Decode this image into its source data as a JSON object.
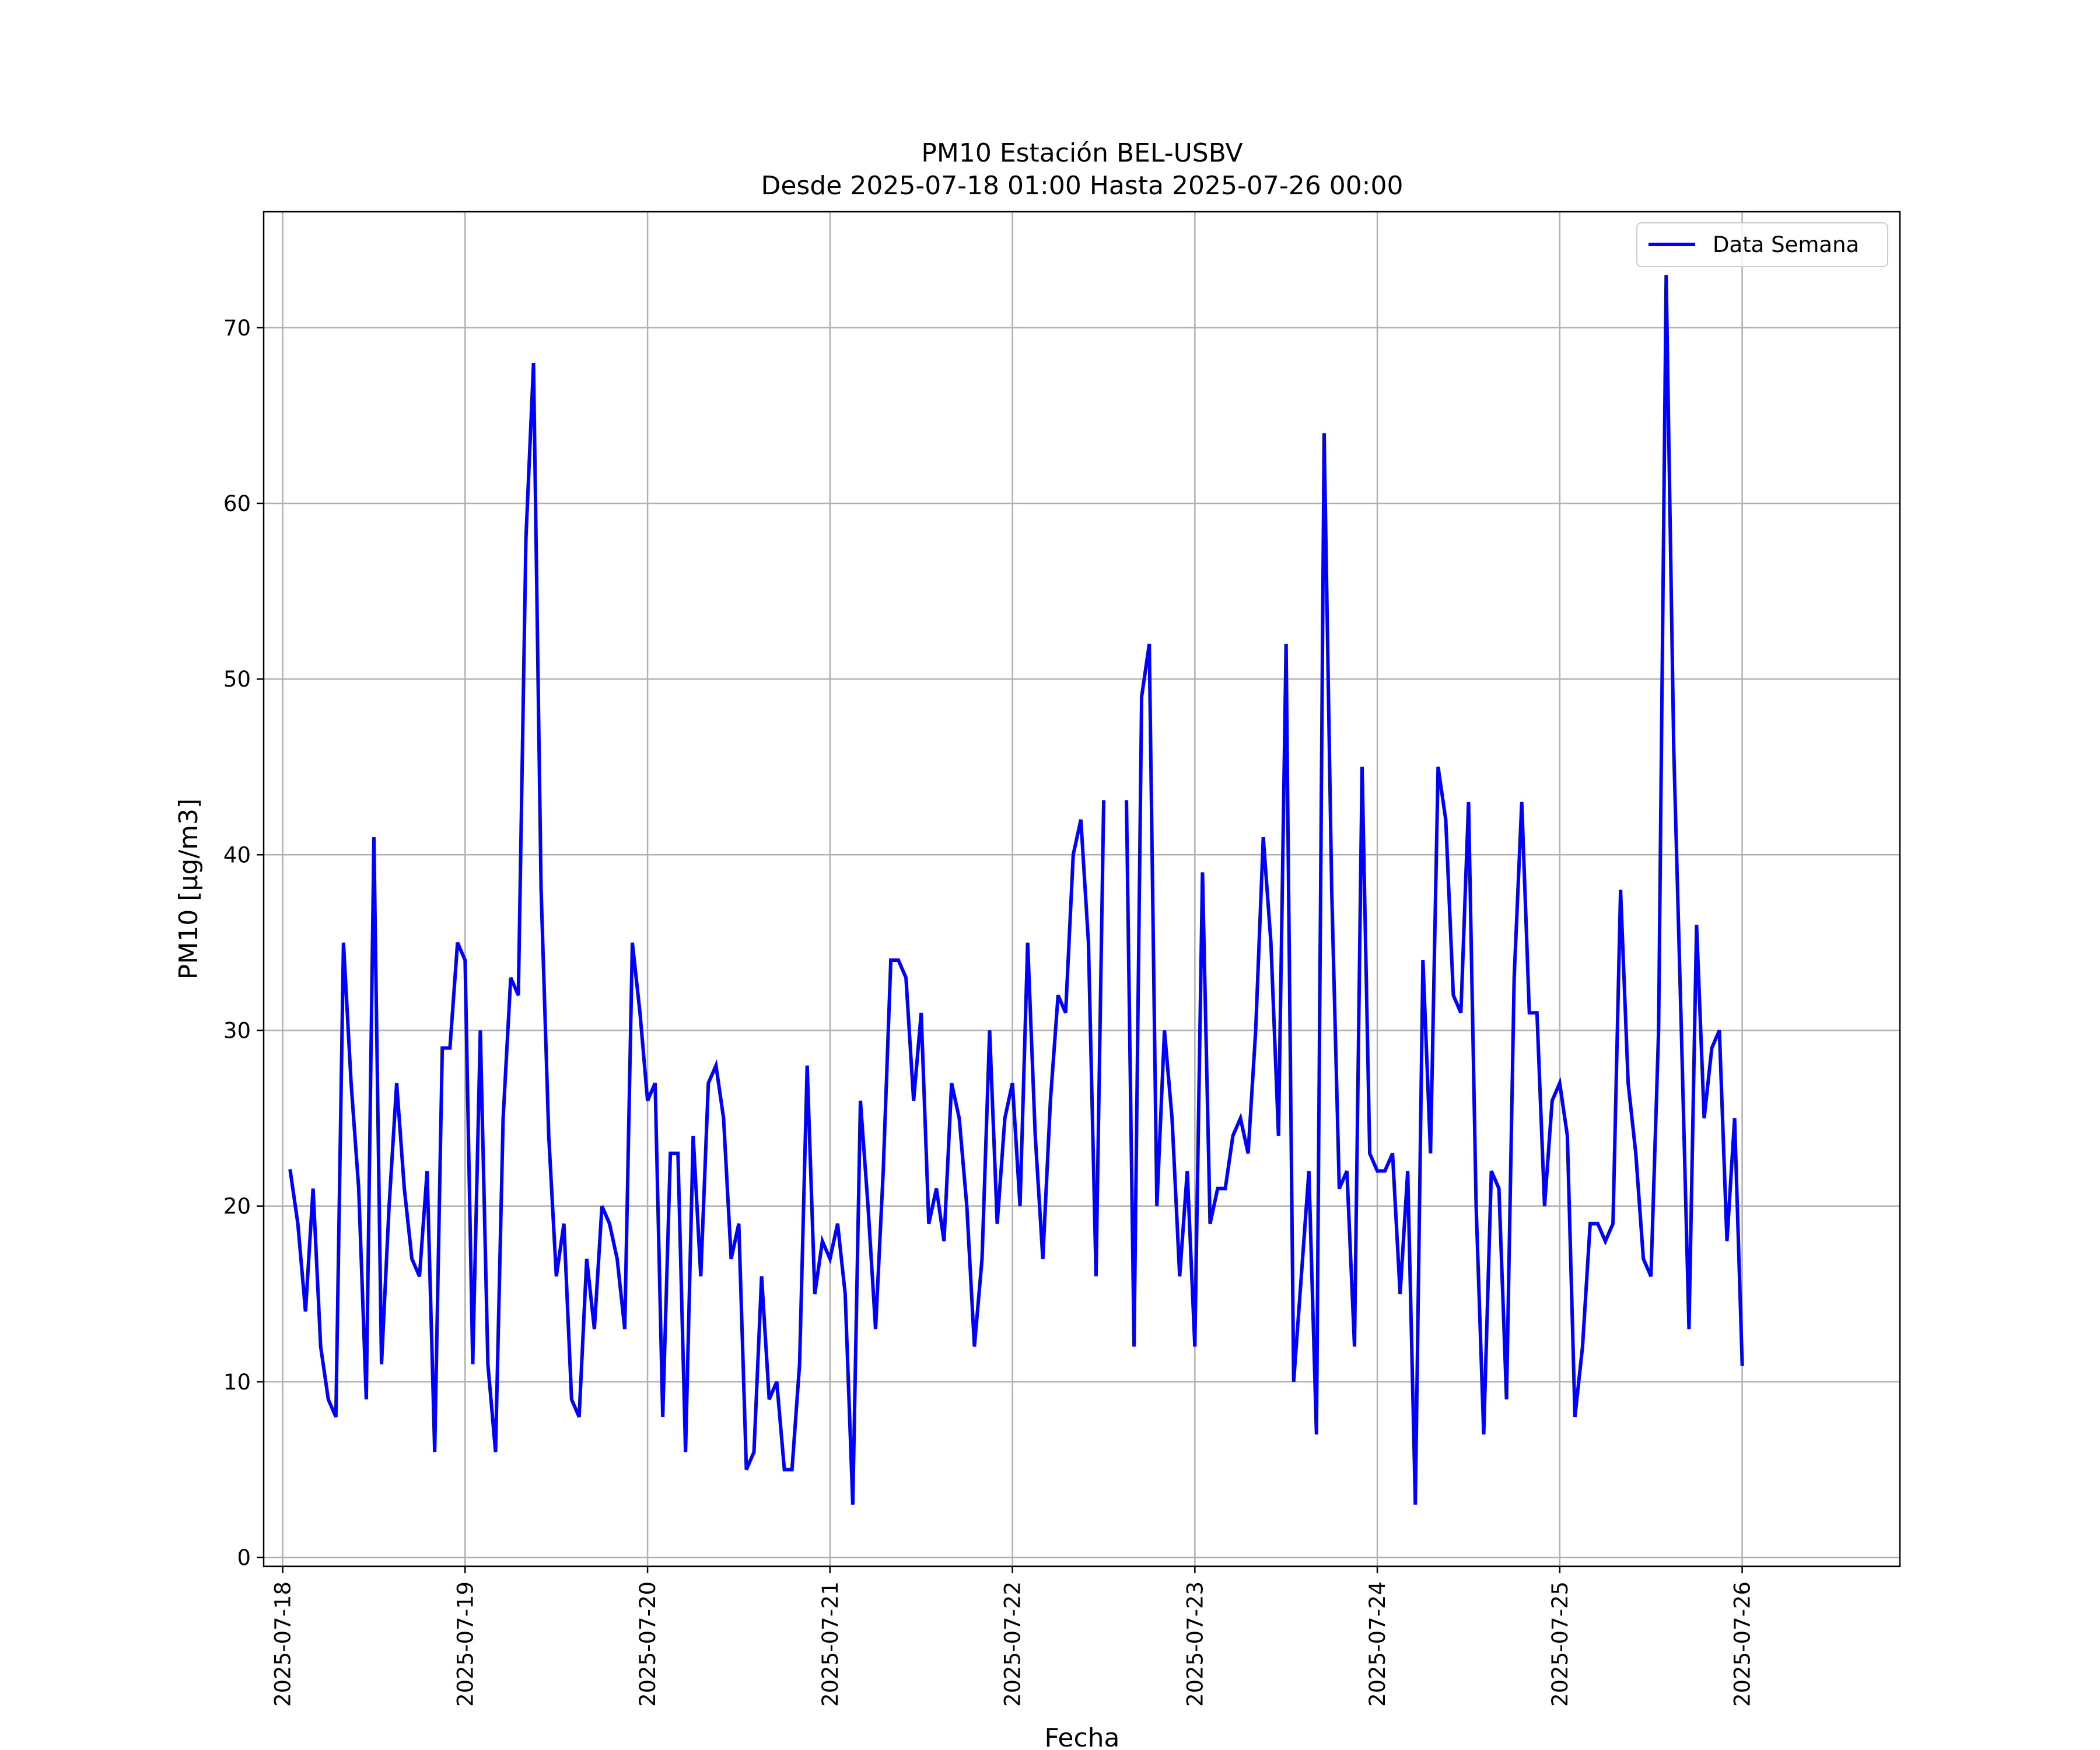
{
  "chart_data": {
    "type": "line",
    "title": "PM10 Estación BEL-USBV",
    "subtitle": "Desde 2025-07-18 01:00 Hasta 2025-07-26 00:00",
    "xlabel": "Fecha",
    "ylabel": "PM10 [µg/m3]",
    "x_start": "2025-07-18 01:00",
    "x_end": "2025-07-26 00:00",
    "x_step_hours": 1,
    "xlim": [
      "2025-07-17 21:30",
      "2025-07-26 20:45"
    ],
    "ylim": [
      -0.5,
      76.6
    ],
    "xticks": [
      "2025-07-18",
      "2025-07-19",
      "2025-07-20",
      "2025-07-21",
      "2025-07-22",
      "2025-07-23",
      "2025-07-24",
      "2025-07-25",
      "2025-07-26"
    ],
    "yticks": [
      0,
      10,
      20,
      30,
      40,
      50,
      60,
      70
    ],
    "grid": true,
    "legend_position": "top-right",
    "colors": {
      "series": "#0000ff",
      "grid": "#b0b0b0",
      "axes": "#000000"
    },
    "series": [
      {
        "name": "Data Semana",
        "values": [
          22,
          19,
          14,
          21,
          12,
          9,
          8,
          35,
          27,
          21,
          9,
          41,
          11,
          20,
          27,
          21,
          17,
          16,
          22,
          6,
          29,
          29,
          35,
          34,
          11,
          30,
          11,
          6,
          25,
          33,
          32,
          58,
          68,
          38,
          24,
          16,
          19,
          9,
          8,
          17,
          13,
          20,
          19,
          17,
          13,
          35,
          31,
          26,
          27,
          8,
          23,
          23,
          6,
          24,
          16,
          27,
          28,
          25,
          17,
          19,
          5,
          6,
          16,
          9,
          10,
          5,
          5,
          11,
          28,
          15,
          18,
          17,
          19,
          15,
          3,
          26,
          20,
          13,
          22,
          34,
          34,
          33,
          26,
          31,
          19,
          21,
          18,
          27,
          25,
          20,
          12,
          17,
          30,
          19,
          25,
          27,
          20,
          35,
          24,
          17,
          26,
          32,
          31,
          40,
          42,
          35,
          16,
          43,
          null,
          null,
          43,
          12,
          49,
          52,
          20,
          30,
          25,
          16,
          22,
          12,
          39,
          19,
          21,
          21,
          24,
          25,
          23,
          30,
          41,
          35,
          24,
          52,
          10,
          16,
          22,
          7,
          64,
          38,
          21,
          22,
          12,
          45,
          23,
          22,
          22,
          23,
          15,
          22,
          3,
          34,
          23,
          45,
          42,
          32,
          31,
          43,
          20,
          7,
          22,
          21,
          9,
          33,
          43,
          31,
          31,
          20,
          26,
          27,
          24,
          8,
          12,
          19,
          19,
          18,
          19,
          38,
          27,
          23,
          17,
          16,
          30,
          73,
          46,
          30,
          13,
          36,
          25,
          29,
          30,
          18,
          25,
          11
        ]
      }
    ]
  }
}
